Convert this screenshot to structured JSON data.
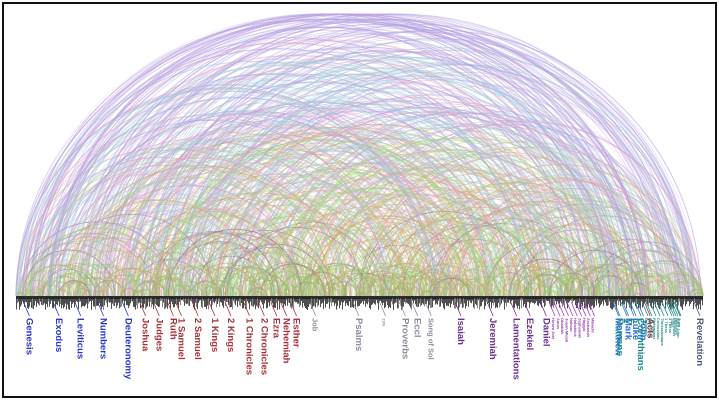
{
  "diagram": {
    "type": "arc-diagram",
    "description_free": true,
    "colors": {
      "law": "#2a35c8",
      "history": "#a8303a",
      "poetry": "#8c8ca0",
      "major_prophets": "#6d2f8e",
      "minor_prophets": "#a040b8",
      "gospels": "#2a70d8",
      "epistles": "#1f8a8a",
      "revelation": "#4a5a7a"
    },
    "books": [
      {
        "name": "Genesis",
        "group": "law",
        "pos": 0.012,
        "size": "large"
      },
      {
        "name": "Exodus",
        "group": "law",
        "pos": 0.06,
        "size": "large"
      },
      {
        "name": "Leviticus",
        "group": "law",
        "pos": 0.095,
        "size": "large"
      },
      {
        "name": "Numbers",
        "group": "law",
        "pos": 0.132,
        "size": "large"
      },
      {
        "name": "Deuteronomy",
        "group": "law",
        "pos": 0.172,
        "size": "large"
      },
      {
        "name": "Joshua",
        "group": "history",
        "pos": 0.2,
        "size": "large"
      },
      {
        "name": "Judges",
        "group": "history",
        "pos": 0.222,
        "size": "large"
      },
      {
        "name": "Ruth",
        "group": "history",
        "pos": 0.245,
        "size": "large"
      },
      {
        "name": "1 Samuel",
        "group": "history",
        "pos": 0.258,
        "size": "large"
      },
      {
        "name": "2 Samuel",
        "group": "history",
        "pos": 0.285,
        "size": "large"
      },
      {
        "name": "1 Kings",
        "group": "history",
        "pos": 0.312,
        "size": "large"
      },
      {
        "name": "2 Kings",
        "group": "history",
        "pos": 0.338,
        "size": "large"
      },
      {
        "name": "1 Chronicles",
        "group": "history",
        "pos": 0.368,
        "size": "large"
      },
      {
        "name": "2 Chronicles",
        "group": "history",
        "pos": 0.392,
        "size": "large"
      },
      {
        "name": "Ezra",
        "group": "history",
        "pos": 0.412,
        "size": "large"
      },
      {
        "name": "Nehemiah",
        "group": "history",
        "pos": 0.428,
        "size": "large"
      },
      {
        "name": "Esther",
        "group": "history",
        "pos": 0.444,
        "size": "large"
      },
      {
        "name": "Job",
        "group": "poetry",
        "pos": 0.475,
        "size": "medium"
      },
      {
        "name": "Psalms",
        "group": "poetry",
        "pos": 0.545,
        "size": "large"
      },
      {
        "name": "11th",
        "group": "poetry",
        "pos": 0.588,
        "size": "tiny"
      },
      {
        "name": "Proverbs",
        "group": "poetry",
        "pos": 0.62,
        "size": "large"
      },
      {
        "name": "Eccl",
        "group": "poetry",
        "pos": 0.64,
        "size": "large"
      },
      {
        "name": "Song of Sol",
        "group": "poetry",
        "pos": 0.662,
        "size": "medium"
      },
      {
        "name": "Isaiah",
        "group": "major_prophets",
        "pos": 0.71,
        "size": "large"
      },
      {
        "name": "Jeremiah",
        "group": "major_prophets",
        "pos": 0.762,
        "size": "large"
      },
      {
        "name": "Lamentations",
        "group": "major_prophets",
        "pos": 0.8,
        "size": "large"
      },
      {
        "name": "Ezekiel",
        "group": "major_prophets",
        "pos": 0.822,
        "size": "large"
      },
      {
        "name": "Daniel",
        "group": "major_prophets",
        "pos": 0.848,
        "size": "large"
      },
      {
        "name": "Hosea Joel",
        "group": "minor_prophets",
        "pos": 0.862,
        "size": "tiny"
      },
      {
        "name": "Amos",
        "group": "minor_prophets",
        "pos": 0.87,
        "size": "tiny"
      },
      {
        "name": "Obadiah",
        "group": "minor_prophets",
        "pos": 0.877,
        "size": "tiny"
      },
      {
        "name": "Jonah Micah",
        "group": "minor_prophets",
        "pos": 0.884,
        "size": "tiny"
      },
      {
        "name": "Nahum",
        "group": "minor_prophets",
        "pos": 0.891,
        "size": "tiny"
      },
      {
        "name": "Habakkuk",
        "group": "minor_prophets",
        "pos": 0.898,
        "size": "tiny"
      },
      {
        "name": "Zephaniah",
        "group": "minor_prophets",
        "pos": 0.905,
        "size": "tiny"
      },
      {
        "name": "Haggai",
        "group": "minor_prophets",
        "pos": 0.912,
        "size": "tiny"
      },
      {
        "name": "Zechariah",
        "group": "minor_prophets",
        "pos": 0.919,
        "size": "tiny"
      },
      {
        "name": "Malachi",
        "group": "minor_prophets",
        "pos": 0.926,
        "size": "tiny"
      }
    ]
  },
  "nt_books": [
    {
      "name": "Matthew",
      "group": "gospels",
      "pos": 0.936,
      "size": "large"
    },
    {
      "name": "Mark",
      "group": "gospels",
      "pos": 0.952,
      "size": "large"
    },
    {
      "name": "Luke",
      "group": "gospels",
      "pos": 0.964,
      "size": "large"
    },
    {
      "name": "John",
      "group": "gospels",
      "pos": 0.976,
      "size": "large"
    },
    {
      "name": "Acts",
      "group": "history",
      "pos": 0.987,
      "size": "large"
    }
  ],
  "epistles": [
    {
      "name": "Romans",
      "group": "epistles",
      "x": 650,
      "size": "large"
    },
    {
      "name": "1",
      "group": "epistles",
      "x": 657,
      "size": "large"
    },
    {
      "name": "2",
      "group": "epistles",
      "x": 664,
      "size": "large"
    },
    {
      "name": "Corinthians",
      "group": "epistles",
      "x": 671,
      "size": "large"
    },
    {
      "name": "Galatians",
      "group": "epistles",
      "x": 678,
      "size": "tiny"
    },
    {
      "name": "Ephesians",
      "group": "epistles",
      "x": 682,
      "size": "tiny"
    },
    {
      "name": "Philippians",
      "group": "epistles",
      "x": 686,
      "size": "tiny"
    },
    {
      "name": "Colossians",
      "group": "epistles",
      "x": 690,
      "size": "tiny"
    },
    {
      "name": "Thessalonians",
      "group": "epistles",
      "x": 694,
      "size": "tiny"
    },
    {
      "name": "1 Thess",
      "group": "epistles",
      "x": 698,
      "size": "tiny"
    },
    {
      "name": "2 Thess",
      "group": "epistles",
      "x": 702,
      "size": "tiny"
    },
    {
      "name": "Titus",
      "group": "epistles",
      "x": 704,
      "size": "tiny"
    },
    {
      "name": "Philemon",
      "group": "epistles",
      "x": 706,
      "size": "tiny"
    },
    {
      "name": "Hebrews",
      "group": "epistles",
      "x": 708,
      "size": "tiny"
    },
    {
      "name": "1,2,3 John",
      "group": "epistles",
      "x": 710,
      "size": "tiny"
    },
    {
      "name": "Jude",
      "group": "epistles",
      "x": 711,
      "size": "tiny"
    },
    {
      "name": "Revelation",
      "group": "revelation",
      "x": 706,
      "size": "large"
    }
  ],
  "arc_palette": [
    "#b3a3e3",
    "#e4a0c8",
    "#9fd0d8",
    "#a6d87a",
    "#d8a870",
    "#8a7090",
    "#c0a0e0",
    "#e0b090"
  ]
}
